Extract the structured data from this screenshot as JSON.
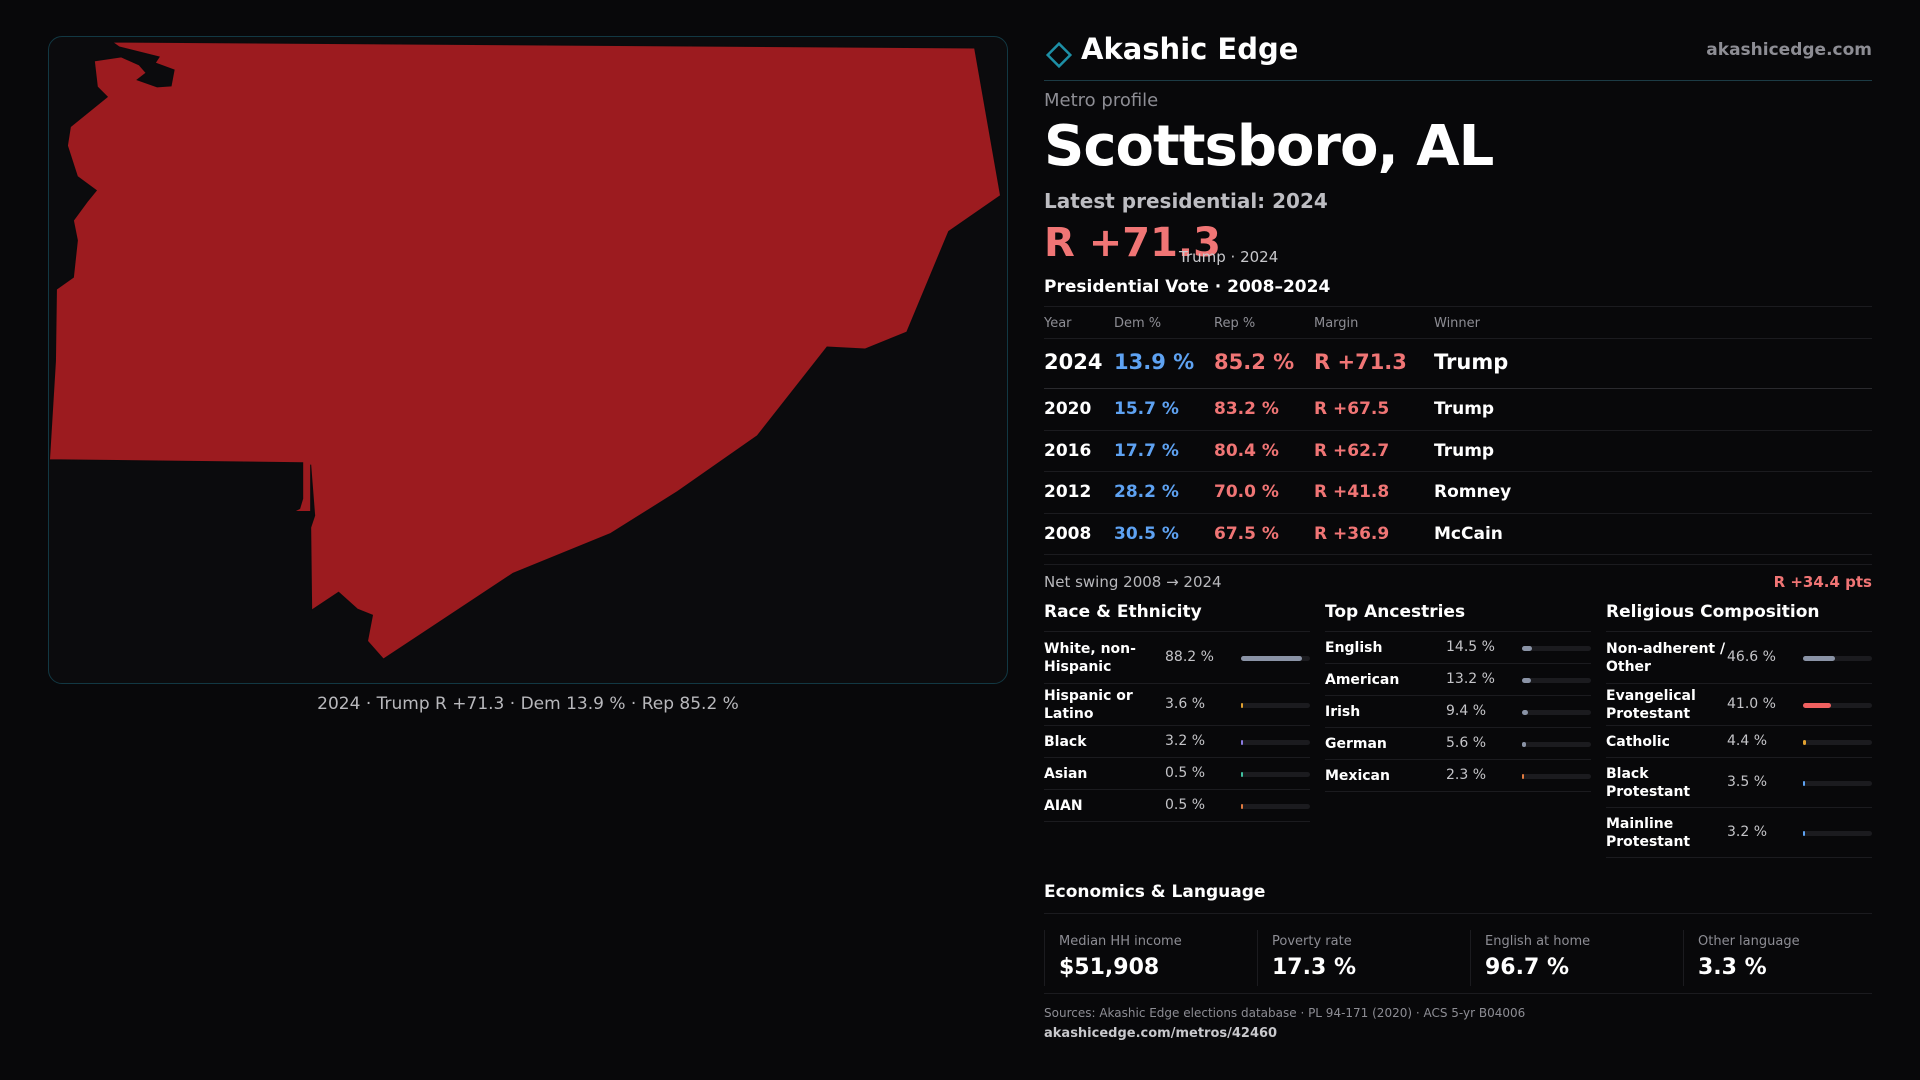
{
  "colors": {
    "rep": "#f07575",
    "dem": "#5ea2f2",
    "map_fill": "#9c1b1f",
    "accent": "#1d8fa6"
  },
  "map": {
    "caption": "2024 · Trump R +71.3 · Dem 13.9 % · Rep 85.2 %"
  },
  "brand": {
    "name": "Akashic Edge",
    "url": "akashicedge.com",
    "logo_icon": "diamond-icon"
  },
  "header": {
    "kicker": "Metro profile",
    "title": "Scottsboro, AL",
    "latest_label": "Latest presidential: 2024",
    "headline_margin": "R +71.3",
    "headline_sub": "Trump · 2024"
  },
  "vote": {
    "title": "Presidential Vote · 2008–2024",
    "columns": [
      "Year",
      "Dem %",
      "Rep %",
      "Margin",
      "Winner"
    ],
    "rows": [
      {
        "year": "2024",
        "dem": "13.9 %",
        "rep": "85.2 %",
        "margin": "R +71.3",
        "winner": "Trump"
      },
      {
        "year": "2020",
        "dem": "15.7 %",
        "rep": "83.2 %",
        "margin": "R +67.5",
        "winner": "Trump"
      },
      {
        "year": "2016",
        "dem": "17.7 %",
        "rep": "80.4 %",
        "margin": "R +62.7",
        "winner": "Trump"
      },
      {
        "year": "2012",
        "dem": "28.2 %",
        "rep": "70.0 %",
        "margin": "R +41.8",
        "winner": "Romney"
      },
      {
        "year": "2008",
        "dem": "30.5 %",
        "rep": "67.5 %",
        "margin": "R +36.9",
        "winner": "McCain"
      }
    ],
    "swing_label": "Net swing 2008 → 2024",
    "swing_value": "R +34.4 pts"
  },
  "race": {
    "title": "Race & Ethnicity",
    "items": [
      {
        "label": "White, non-Hispanic",
        "value": "88.2 %",
        "pct": 88.2,
        "color": "#8a93a6"
      },
      {
        "label": "Hispanic or Latino",
        "value": "3.6 %",
        "pct": 3.6,
        "color": "#e0a030"
      },
      {
        "label": "Black",
        "value": "3.2 %",
        "pct": 3.2,
        "color": "#8a7ae0"
      },
      {
        "label": "Asian",
        "value": "0.5 %",
        "pct": 0.5,
        "color": "#40c0a0"
      },
      {
        "label": "AIAN",
        "value": "0.5 %",
        "pct": 0.5,
        "color": "#e07a40"
      }
    ]
  },
  "ancestry": {
    "title": "Top Ancestries",
    "items": [
      {
        "label": "English",
        "value": "14.5 %",
        "pct": 14.5,
        "color": "#8a93a6"
      },
      {
        "label": "American",
        "value": "13.2 %",
        "pct": 13.2,
        "color": "#8a93a6"
      },
      {
        "label": "Irish",
        "value": "9.4 %",
        "pct": 9.4,
        "color": "#8a93a6"
      },
      {
        "label": "German",
        "value": "5.6 %",
        "pct": 5.6,
        "color": "#8a93a6"
      },
      {
        "label": "Mexican",
        "value": "2.3 %",
        "pct": 2.3,
        "color": "#e07a40"
      }
    ]
  },
  "religion": {
    "title": "Religious Composition",
    "items": [
      {
        "label": "Non-adherent / Other",
        "value": "46.6 %",
        "pct": 46.6,
        "color": "#8a93a6"
      },
      {
        "label": "Evangelical Protestant",
        "value": "41.0 %",
        "pct": 41.0,
        "color": "#f06060"
      },
      {
        "label": "Catholic",
        "value": "4.4 %",
        "pct": 4.4,
        "color": "#e0a030"
      },
      {
        "label": "Black Protestant",
        "value": "3.5 %",
        "pct": 3.5,
        "color": "#5ea2f2"
      },
      {
        "label": "Mainline Protestant",
        "value": "3.2 %",
        "pct": 3.2,
        "color": "#5ea2f2"
      }
    ]
  },
  "economics": {
    "title": "Economics & Language",
    "items": [
      {
        "label": "Median HH income",
        "value": "$51,908"
      },
      {
        "label": "Poverty rate",
        "value": "17.3 %"
      },
      {
        "label": "English at home",
        "value": "96.7 %"
      },
      {
        "label": "Other language",
        "value": "3.3 %"
      }
    ]
  },
  "footer": {
    "sources": "Sources: Akashic Edge elections database · PL 94-171 (2020) · ACS 5-yr B04006",
    "url": "akashicedge.com/metros/42460"
  }
}
